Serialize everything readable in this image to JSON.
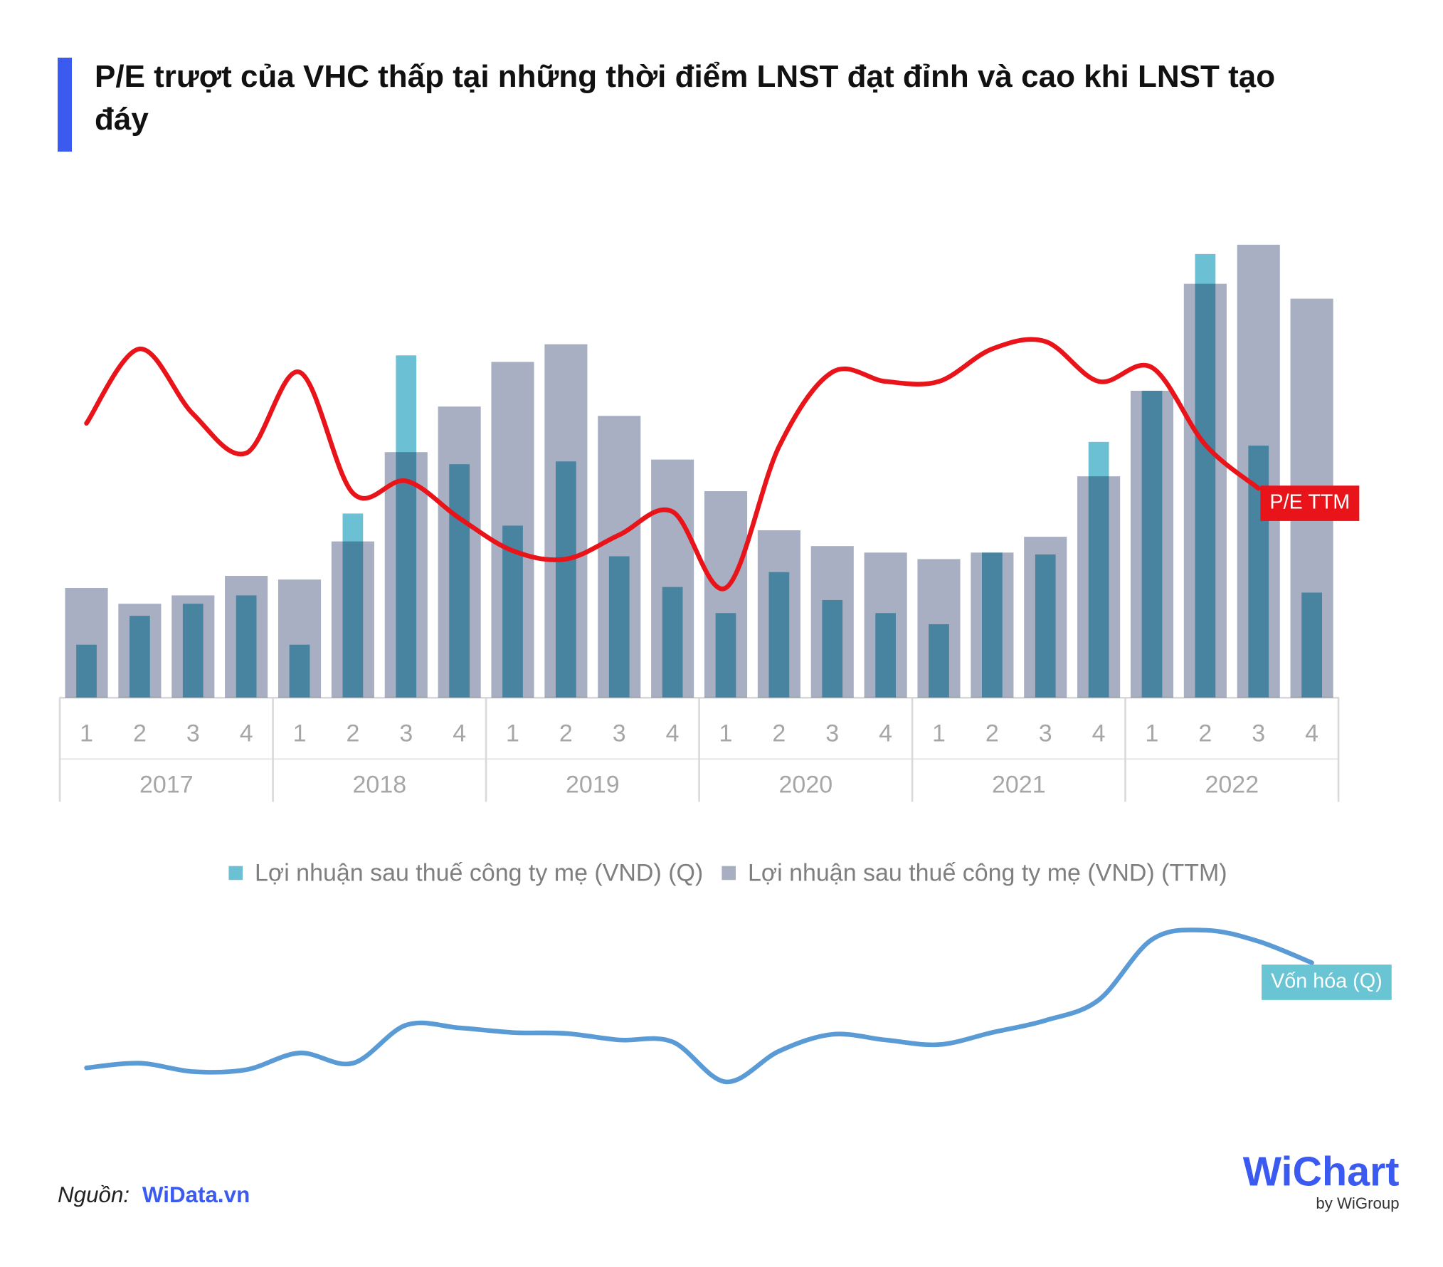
{
  "chart_data": [
    {
      "type": "bar_line",
      "title": "P/E trượt của VHC thấp tại những thời điểm LNST đạt đỉnh và cao khi LNST tạo đáy",
      "categories": [
        "1",
        "2",
        "3",
        "4",
        "1",
        "2",
        "3",
        "4",
        "1",
        "2",
        "3",
        "4",
        "1",
        "2",
        "3",
        "4",
        "1",
        "2",
        "3",
        "4",
        "1",
        "2",
        "3",
        "4"
      ],
      "groups": [
        "2017",
        "2018",
        "2019",
        "2020",
        "2021",
        "2022"
      ],
      "ylim": [
        0,
        500
      ],
      "series": [
        {
          "name": "Lợi nhuận sau thuế công ty mẹ (VND) (Q)",
          "type": "bar",
          "color": "#6cc0d3",
          "values": [
            57,
            88,
            101,
            110,
            57,
            198,
            368,
            251,
            185,
            254,
            152,
            119,
            91,
            135,
            105,
            91,
            79,
            156,
            154,
            275,
            330,
            477,
            271,
            113
          ]
        },
        {
          "name": "Lợi nhuận sau thuế công ty mẹ (VND) (TTM)",
          "type": "bar",
          "color": "#a9afc2",
          "values": [
            118,
            101,
            110,
            131,
            127,
            168,
            264,
            313,
            361,
            380,
            303,
            256,
            222,
            180,
            163,
            156,
            149,
            156,
            173,
            238,
            330,
            445,
            487,
            429
          ]
        },
        {
          "name": "P/E TTM",
          "type": "line",
          "color": "#e8141a",
          "values": [
            295,
            375,
            305,
            263,
            350,
            220,
            233,
            193,
            158,
            149,
            175,
            200,
            118,
            270,
            350,
            340,
            340,
            375,
            383,
            340,
            355,
            272,
            225,
            null
          ]
        }
      ]
    },
    {
      "type": "line",
      "ylim": [
        0,
        200
      ],
      "series": [
        {
          "name": "Vốn hóa (Q)",
          "color": "#5b9bd5",
          "label_color": "#69c4d3",
          "values": [
            52,
            57,
            48,
            50,
            68,
            57,
            98,
            95,
            90,
            89,
            82,
            80,
            37,
            70,
            88,
            82,
            77,
            90,
            103,
            125,
            190,
            200,
            188,
            165
          ]
        }
      ]
    }
  ],
  "footer": {
    "source_label": "Nguồn:",
    "source_link": "WiData.vn",
    "logo": "WiChart",
    "logo_sub": "by WiGroup"
  }
}
